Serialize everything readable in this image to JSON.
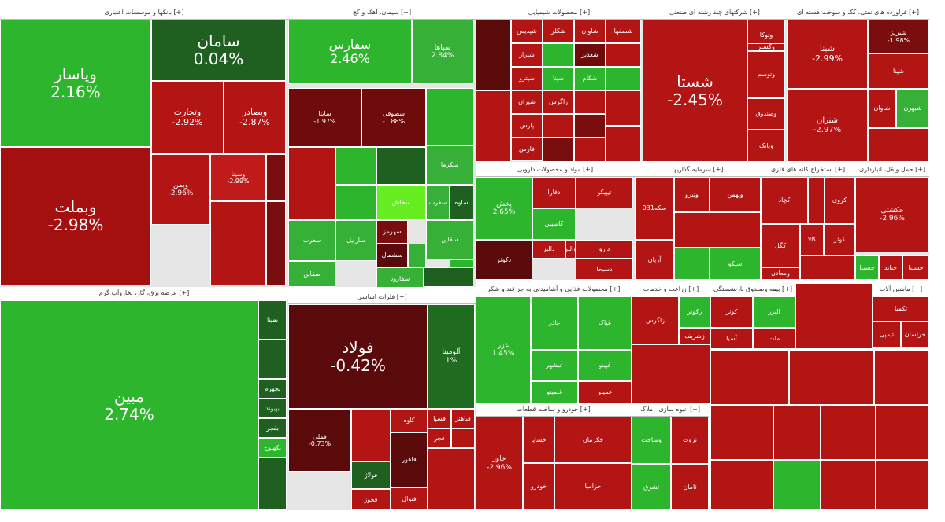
{
  "chart_data": {
    "type": "treemap",
    "title": "",
    "colors": {
      "gain_strong": "#27b227",
      "gain": "#46a83a",
      "gain_dark": "#1f6b1f",
      "gain_bright": "#66ee22",
      "loss_dark": "#5a0a0a",
      "loss": "#a10b0b",
      "loss_light": "#c81c1c",
      "neutral": "#d43434"
    },
    "sectors": [
      {
        "title": "بانکها و موسسات اعتباری [+]",
        "stocks": [
          {
            "symbol": "وپاسار",
            "change": "2.16%",
            "color": "#2db52d"
          },
          {
            "symbol": "سامان",
            "change": "0.04%",
            "color": "#1f5f1f"
          },
          {
            "symbol": "وتجارت",
            "change": "-2.92%",
            "color": "#b31414"
          },
          {
            "symbol": "وبصادر",
            "change": "-2.87%",
            "color": "#b31414"
          },
          {
            "symbol": "وبملت",
            "change": "-2.98%",
            "color": "#a40f0f"
          },
          {
            "symbol": "وبمن",
            "change": "-2.96%",
            "color": "#b31414"
          },
          {
            "symbol": "وسینا",
            "change": "-2.99%",
            "color": "#c01a1a"
          }
        ]
      },
      {
        "title": "سیمان، آهک و گچ [+]",
        "stocks": [
          {
            "symbol": "سفارس",
            "change": "2.46%",
            "color": "#2db52d"
          },
          {
            "symbol": "سپاها",
            "change": "2.84%",
            "color": "#37b037"
          },
          {
            "symbol": "ساینا",
            "change": "-1.97%",
            "color": "#6e0c0c"
          },
          {
            "symbol": "سصوفی",
            "change": "-1.88%",
            "color": "#6e0c0c"
          },
          {
            "symbol": "سخاش",
            "change": "",
            "color": "#66ee22"
          },
          {
            "symbol": "سهرمز",
            "change": "",
            "color": "#7a0d0d"
          },
          {
            "symbol": "سغرب",
            "change": "",
            "color": "#37b037"
          },
          {
            "symbol": "ساوه",
            "change": "",
            "color": "#1f5f1f"
          },
          {
            "symbol": "ساربیل",
            "change": "",
            "color": "#37b037"
          },
          {
            "symbol": "سشمال",
            "change": "",
            "color": "#5a0a0a"
          },
          {
            "symbol": "سفارود",
            "change": "",
            "color": "#37b037"
          },
          {
            "symbol": "سقاین",
            "change": "",
            "color": "#37b037"
          },
          {
            "symbol": "سکرما",
            "change": "",
            "color": "#37b037"
          },
          {
            "symbol": "سغرب",
            "change": "",
            "color": "#37b037"
          },
          {
            "symbol": "سقاین",
            "change": "",
            "color": "#37b037"
          }
        ]
      },
      {
        "title": "محصولات شیمیایی [+]",
        "stocks": [
          {
            "symbol": "شپدیس",
            "change": "",
            "color": "#b31414"
          },
          {
            "symbol": "شیراز",
            "change": "",
            "color": "#b31414"
          },
          {
            "symbol": "شکلر",
            "change": "",
            "color": "#b31414"
          },
          {
            "symbol": "شاوان",
            "change": "",
            "color": "#b31414"
          },
          {
            "symbol": "شپترو",
            "change": "",
            "color": "#b31414"
          },
          {
            "symbol": "شپنا",
            "change": "",
            "color": "#2db52d"
          },
          {
            "symbol": "شیران",
            "change": "",
            "color": "#b31414"
          },
          {
            "symbol": "شغدیر",
            "change": "",
            "color": "#6e0c0c"
          },
          {
            "symbol": "شکام",
            "change": "",
            "color": "#2db52d"
          },
          {
            "symbol": "شصفها",
            "change": "",
            "color": "#b31414"
          },
          {
            "symbol": "پارس",
            "change": "",
            "color": "#b31414"
          },
          {
            "symbol": "زاگرس",
            "change": "",
            "color": "#b31414"
          },
          {
            "symbol": "فارس",
            "change": "",
            "color": "#b31414"
          }
        ]
      },
      {
        "title": "شرکتهای چند رشته ای صنعتی [+]",
        "stocks": [
          {
            "symbol": "شستا",
            "change": "-2.45%",
            "color": "#b31414"
          },
          {
            "symbol": "وتوکا",
            "change": "",
            "color": "#b31414"
          },
          {
            "symbol": "وصندوق",
            "change": "",
            "color": "#b31414"
          },
          {
            "symbol": "وتوسم",
            "change": "",
            "color": "#b31414"
          },
          {
            "symbol": "وبانک",
            "change": "",
            "color": "#b31414"
          },
          {
            "symbol": "وگستر",
            "change": "",
            "color": "#b31414"
          }
        ]
      },
      {
        "title": "فراورده های نفتی، کک و سوخت هسته ای [+]",
        "stocks": [
          {
            "symbol": "شبنا",
            "change": "-2.99%",
            "color": "#b31414"
          },
          {
            "symbol": "شتران",
            "change": "-2.97%",
            "color": "#b31414"
          },
          {
            "symbol": "شبریز",
            "change": "-1.98%",
            "color": "#7a0d0d"
          },
          {
            "symbol": "شپنا",
            "change": "",
            "color": "#b31414"
          },
          {
            "symbol": "شاوان",
            "change": "",
            "color": "#b31414"
          },
          {
            "symbol": "شبهرن",
            "change": "",
            "color": "#37b037"
          }
        ]
      },
      {
        "title": "عرضه برق، گاز، بخاروآب گرم [+]",
        "stocks": [
          {
            "symbol": "مبین",
            "change": "2.74%",
            "color": "#2db52d"
          },
          {
            "symbol": "بمپنا",
            "change": "",
            "color": "#1f5f1f"
          },
          {
            "symbol": "بجهرم",
            "change": "",
            "color": "#1f5f1f"
          },
          {
            "symbol": "بپیوند",
            "change": "",
            "color": "#1f5f1f"
          },
          {
            "symbol": "بفجر",
            "change": "",
            "color": "#1f5f1f"
          },
          {
            "symbol": "بکهنوج",
            "change": "",
            "color": "#2db52d"
          }
        ]
      },
      {
        "title": "فلزات اساسی [+]",
        "stocks": [
          {
            "symbol": "فولاد",
            "change": "-0.42%",
            "color": "#5a0a0a"
          },
          {
            "symbol": "فملی",
            "change": "-0.73%",
            "color": "#5a0a0a"
          },
          {
            "symbol": "آلومینا",
            "change": "1%",
            "color": "#1f6b1f"
          },
          {
            "symbol": "کاوه",
            "change": "",
            "color": "#b31414"
          },
          {
            "symbol": "فولاژ",
            "change": "",
            "color": "#1f5f1f"
          },
          {
            "symbol": "فسپا",
            "change": "",
            "color": "#b31414"
          },
          {
            "symbol": "فجر",
            "change": "",
            "color": "#b31414"
          },
          {
            "symbol": "فخوز",
            "change": "",
            "color": "#b31414"
          },
          {
            "symbol": "فاهور",
            "change": "",
            "color": "#5a0a0a"
          },
          {
            "symbol": "فباهنر",
            "change": "",
            "color": "#b31414"
          },
          {
            "symbol": "فنوال",
            "change": "",
            "color": "#b31414"
          }
        ]
      },
      {
        "title": "مواد و محصولات دارویی [+]",
        "stocks": [
          {
            "symbol": "پخش",
            "change": "2.65%",
            "color": "#2db52d"
          },
          {
            "symbol": "دفارا",
            "change": "",
            "color": "#b31414"
          },
          {
            "symbol": "تیپیکو",
            "change": "",
            "color": "#b31414"
          },
          {
            "symbol": "کاسپین",
            "change": "",
            "color": "#2db52d"
          },
          {
            "symbol": "دالبر",
            "change": "",
            "color": "#b31414"
          },
          {
            "symbol": "دارو",
            "change": "",
            "color": "#b31414"
          },
          {
            "symbol": "والبر",
            "change": "",
            "color": "#b31414"
          },
          {
            "symbol": "دسبحا",
            "change": "",
            "color": "#b31414"
          },
          {
            "symbol": "دکوثر",
            "change": "",
            "color": "#5a0a0a"
          }
        ]
      },
      {
        "title": "سرمایه گذاریها [+]",
        "stocks": [
          {
            "symbol": "ونیرو",
            "change": "",
            "color": "#b31414"
          },
          {
            "symbol": "وبهمن",
            "change": "",
            "color": "#b31414"
          },
          {
            "symbol": "آریان",
            "change": "",
            "color": "#b31414"
          },
          {
            "symbol": "سپکو",
            "change": "",
            "color": "#2db52d"
          },
          {
            "symbol": "سکه031",
            "change": "",
            "color": "#b31414"
          }
        ]
      },
      {
        "title": "استخراج کانه های فلزی [+]",
        "stocks": [
          {
            "symbol": "کچاد",
            "change": "",
            "color": "#b31414"
          },
          {
            "symbol": "کگل",
            "change": "",
            "color": "#b31414"
          },
          {
            "symbol": "کالا",
            "change": "",
            "color": "#b31414"
          },
          {
            "symbol": "کوثر",
            "change": "",
            "color": "#b31414"
          },
          {
            "symbol": "کروی",
            "change": "",
            "color": "#b31414"
          },
          {
            "symbol": "کچاد",
            "change": "",
            "color": "#b31414"
          },
          {
            "symbol": "ومعادن",
            "change": "",
            "color": "#b31414"
          }
        ]
      },
      {
        "title": "حمل ونقل، انبارداری [+]",
        "stocks": [
          {
            "symbol": "حکشتی",
            "change": "-2.96%",
            "color": "#b31414"
          },
          {
            "symbol": "حتاید",
            "change": "",
            "color": "#b31414"
          },
          {
            "symbol": "حسینا",
            "change": "",
            "color": "#b31414"
          },
          {
            "symbol": "حسینا",
            "change": "",
            "color": "#2db52d"
          }
        ]
      },
      {
        "title": "محصولات غذایی و آشامیدنی به جز قند و شکر [+]",
        "stocks": [
          {
            "symbol": "غزر",
            "change": "1.45%",
            "color": "#2db52d"
          },
          {
            "symbol": "غاذر",
            "change": "",
            "color": "#2db52d"
          },
          {
            "symbol": "غپاک",
            "change": "",
            "color": "#2db52d"
          },
          {
            "symbol": "غبشهر",
            "change": "",
            "color": "#2db52d"
          },
          {
            "symbol": "غپینو",
            "change": "",
            "color": "#2db52d"
          },
          {
            "symbol": "غصینو",
            "change": "",
            "color": "#2db52d"
          },
          {
            "symbol": "غمینو",
            "change": "",
            "color": "#b31414"
          }
        ]
      },
      {
        "title": "زراعت و خدمات [+]",
        "stocks": [
          {
            "symbol": "زاگرس",
            "change": "",
            "color": "#b31414"
          },
          {
            "symbol": "زکوثر",
            "change": "",
            "color": "#2db52d"
          },
          {
            "symbol": "زشریف",
            "change": "",
            "color": "#b31414"
          }
        ]
      },
      {
        "title": "خودرو و ساخت قطعات [+]",
        "stocks": [
          {
            "symbol": "خاور",
            "change": "-2.96%",
            "color": "#b31414"
          },
          {
            "symbol": "خکرمان",
            "change": "",
            "color": "#b31414"
          },
          {
            "symbol": "خزامیا",
            "change": "",
            "color": "#b31414"
          },
          {
            "symbol": "خساپا",
            "change": "",
            "color": "#b31414"
          },
          {
            "symbol": "خودرو",
            "change": "",
            "color": "#b31414"
          }
        ]
      },
      {
        "title": "انبوه سازی، املاک [+]",
        "stocks": [
          {
            "symbol": "وساخت",
            "change": "",
            "color": "#2db52d"
          },
          {
            "symbol": "ثروت",
            "change": "",
            "color": "#b31414"
          },
          {
            "symbol": "ثشرق",
            "change": "",
            "color": "#2db52d"
          },
          {
            "symbol": "ثامان",
            "change": "",
            "color": "#b31414"
          }
        ]
      },
      {
        "title": "بیمه وصندوق بازنشستگی [+]",
        "stocks": [
          {
            "symbol": "کوثر",
            "change": "",
            "color": "#b31414"
          },
          {
            "symbol": "البرز",
            "change": "",
            "color": "#2db52d"
          },
          {
            "symbol": "آسیا",
            "change": "",
            "color": "#b31414"
          },
          {
            "symbol": "ملت",
            "change": "",
            "color": "#b31414"
          }
        ]
      },
      {
        "title": "ماشین آلات [+]",
        "stocks": [
          {
            "symbol": "تکمبا",
            "change": "",
            "color": "#b31414"
          },
          {
            "symbol": "تپمپی",
            "change": "",
            "color": "#b31414"
          },
          {
            "symbol": "خراسان",
            "change": "",
            "color": "#b31414"
          }
        ]
      }
    ]
  }
}
